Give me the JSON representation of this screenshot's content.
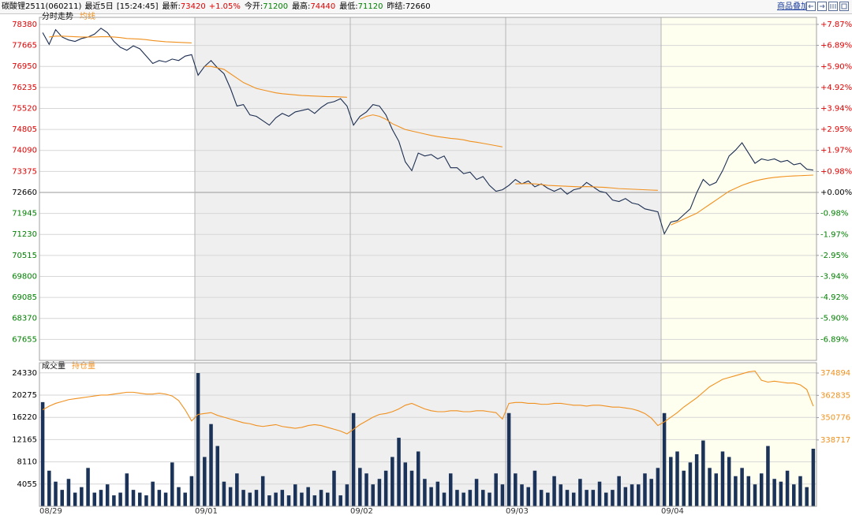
{
  "header": {
    "instrument": "碳酸锂2511(060211)",
    "period": "最近5日",
    "time": "[15:24:45]",
    "latest": {
      "label": "最新:",
      "value": 73420,
      "change": "+1.05%"
    },
    "open": {
      "label": "今开:",
      "value": 71200
    },
    "high": {
      "label": "最高:",
      "value": 74440
    },
    "low": {
      "label": "最低:",
      "value": 71120
    },
    "prev_close": {
      "label": "昨结:",
      "value": 72660
    },
    "overlay_link": "商品叠加"
  },
  "chart_data": [
    {
      "type": "line",
      "ylim": [
        66940,
        78620
      ],
      "yticks": [
        78380,
        77665,
        76950,
        76235,
        75520,
        74805,
        74090,
        73375,
        72660,
        71945,
        71230,
        70515,
        69800,
        69085,
        68370,
        67655
      ],
      "y2lim": [
        -7.87,
        8.2
      ],
      "y2ticks": [
        {
          "value": 7.87,
          "label": "+7.87%"
        },
        {
          "value": 6.89,
          "label": "+6.89%"
        },
        {
          "value": 5.9,
          "label": "+5.90%"
        },
        {
          "value": 4.92,
          "label": "+4.92%"
        },
        {
          "value": 3.94,
          "label": "+3.94%"
        },
        {
          "value": 2.95,
          "label": "+2.95%"
        },
        {
          "value": 1.97,
          "label": "+1.97%"
        },
        {
          "value": 0.98,
          "label": "+0.98%"
        },
        {
          "value": 0,
          "label": "+0.00%"
        },
        {
          "value": -0.98,
          "label": "-0.98%"
        },
        {
          "value": -1.97,
          "label": "-1.97%"
        },
        {
          "value": -2.95,
          "label": "-2.95%"
        },
        {
          "value": -3.94,
          "label": "-3.94%"
        },
        {
          "value": -4.92,
          "label": "-4.92%"
        },
        {
          "value": -5.9,
          "label": "-5.90%"
        },
        {
          "value": -6.89,
          "label": "-6.89%"
        }
      ],
      "grid": true,
      "series": [
        {
          "name": "分时走势",
          "color": "#1b2d50",
          "values": [
            78100,
            77700,
            78200,
            77950,
            77850,
            77800,
            77900,
            77950,
            78050,
            78250,
            78100,
            77800,
            77600,
            77500,
            77650,
            77550,
            77300,
            77050,
            77150,
            77100,
            77200,
            77150,
            77300,
            77350,
            76650,
            76950,
            77150,
            76900,
            76700,
            76200,
            75600,
            75650,
            75300,
            75250,
            75100,
            74950,
            75200,
            75350,
            75250,
            75400,
            75450,
            75500,
            75350,
            75550,
            75700,
            75750,
            75850,
            75600,
            74950,
            75250,
            75400,
            75650,
            75600,
            75300,
            74800,
            74400,
            73700,
            73400,
            74000,
            73900,
            73950,
            73800,
            73900,
            73500,
            73500,
            73300,
            73350,
            73100,
            73200,
            72900,
            72700,
            72750,
            72900,
            73100,
            72950,
            73050,
            72850,
            72950,
            72800,
            72700,
            72800,
            72600,
            72750,
            72800,
            73000,
            72850,
            72700,
            72650,
            72400,
            72350,
            72450,
            72300,
            72250,
            72100,
            72050,
            72000,
            71250,
            71650,
            71700,
            71900,
            72100,
            72650,
            73100,
            72900,
            73000,
            73400,
            73900,
            74100,
            74350,
            74000,
            73650,
            73800,
            73750,
            73800,
            73700,
            73750,
            73600,
            73650,
            73450,
            73420
          ]
        },
        {
          "name": "均线",
          "color": "#f0901e",
          "values": [
            null,
            77950,
            77980,
            77980,
            77970,
            77960,
            77950,
            77950,
            77950,
            77960,
            77960,
            77950,
            77930,
            77900,
            77890,
            77880,
            77860,
            77830,
            77810,
            77790,
            77780,
            77770,
            77760,
            77750,
            null,
            76950,
            76950,
            76900,
            76850,
            76700,
            76550,
            76400,
            76300,
            76200,
            76150,
            76100,
            76050,
            76020,
            76000,
            75980,
            75960,
            75950,
            75940,
            75930,
            75920,
            75920,
            75910,
            75900,
            null,
            75150,
            75250,
            75300,
            75250,
            75150,
            75000,
            74900,
            74800,
            74750,
            74700,
            74650,
            74600,
            74560,
            74530,
            74500,
            74480,
            74450,
            74400,
            74370,
            74330,
            74290,
            74250,
            74210,
            null,
            72950,
            72960,
            72960,
            72950,
            72930,
            72900,
            72890,
            72880,
            72870,
            72860,
            72850,
            72860,
            72850,
            72840,
            72830,
            72810,
            72790,
            72780,
            72770,
            72760,
            72750,
            72740,
            72730,
            null,
            71550,
            71650,
            71750,
            71850,
            71950,
            72100,
            72250,
            72400,
            72550,
            72700,
            72800,
            72900,
            72980,
            73050,
            73100,
            73140,
            73170,
            73190,
            73210,
            73220,
            73230,
            73240,
            73250
          ]
        }
      ]
    },
    {
      "type": "bar",
      "days": [
        "08/29",
        "09/01",
        "09/02",
        "09/03",
        "09/04"
      ],
      "ylim": [
        0,
        26170
      ],
      "yticks": [
        24330,
        20275,
        16220,
        12165,
        8110,
        4055
      ],
      "y2lim": [
        302800,
        380450
      ],
      "y2ticks": [
        374894,
        362835,
        350776,
        338717
      ],
      "grid": true,
      "series": [
        {
          "name": "成交量",
          "color": "#1b3358",
          "values": [
            19000,
            6500,
            4500,
            3000,
            5000,
            2500,
            3500,
            7000,
            2500,
            3000,
            4000,
            2000,
            2500,
            6000,
            3000,
            2500,
            2000,
            4500,
            3000,
            2500,
            8000,
            3500,
            2500,
            5500,
            24300,
            9000,
            15000,
            11000,
            4500,
            3500,
            6000,
            3000,
            2500,
            3000,
            5500,
            2000,
            2500,
            3000,
            2000,
            4000,
            2500,
            3500,
            2000,
            3000,
            2500,
            6500,
            2000,
            4000,
            17000,
            7000,
            6000,
            4000,
            5000,
            6500,
            9000,
            12500,
            8000,
            6500,
            10000,
            5000,
            3500,
            4500,
            2500,
            6000,
            3000,
            2500,
            3000,
            5000,
            3000,
            2500,
            6000,
            4000,
            17000,
            6000,
            4000,
            3500,
            6500,
            3000,
            2500,
            5500,
            4000,
            3000,
            2500,
            5000,
            3000,
            3000,
            4500,
            2500,
            3000,
            5500,
            3500,
            4000,
            4000,
            6000,
            5000,
            7000,
            17000,
            9000,
            10000,
            6500,
            8000,
            9500,
            12000,
            7000,
            6000,
            10000,
            9000,
            5500,
            7000,
            5500,
            4000,
            6000,
            11000,
            5000,
            4500,
            6500,
            4000,
            5500,
            3500,
            10500
          ]
        },
        {
          "name": "持仓量",
          "color": "#f0901e",
          "type": "line",
          "axis": "y2",
          "values": [
            355000,
            357000,
            358500,
            359500,
            360500,
            361000,
            361500,
            362000,
            362500,
            363000,
            363000,
            363500,
            364000,
            364500,
            364500,
            364000,
            363500,
            363500,
            364000,
            363500,
            362500,
            360000,
            355000,
            349000,
            352500,
            353000,
            353500,
            352000,
            351000,
            350000,
            349000,
            348000,
            347500,
            346500,
            346000,
            346500,
            347000,
            346000,
            345500,
            345000,
            345500,
            346500,
            347000,
            346500,
            345500,
            344500,
            343500,
            342000,
            344500,
            347000,
            349000,
            351000,
            352500,
            353000,
            354000,
            355500,
            357500,
            358500,
            357000,
            355500,
            354500,
            354000,
            354000,
            354500,
            354500,
            354000,
            354000,
            354500,
            354500,
            354000,
            353500,
            350000,
            358500,
            359000,
            359000,
            358500,
            358500,
            358000,
            358000,
            358500,
            358500,
            358000,
            357500,
            357500,
            357000,
            357500,
            357500,
            357000,
            356500,
            356500,
            356000,
            355500,
            354500,
            353000,
            350500,
            346500,
            348500,
            351000,
            353500,
            356500,
            359000,
            361500,
            364500,
            367500,
            369500,
            371500,
            372500,
            373500,
            374500,
            375500,
            376000,
            371000,
            370000,
            370500,
            370000,
            369500,
            369500,
            368500,
            366000,
            357000
          ]
        }
      ]
    }
  ]
}
